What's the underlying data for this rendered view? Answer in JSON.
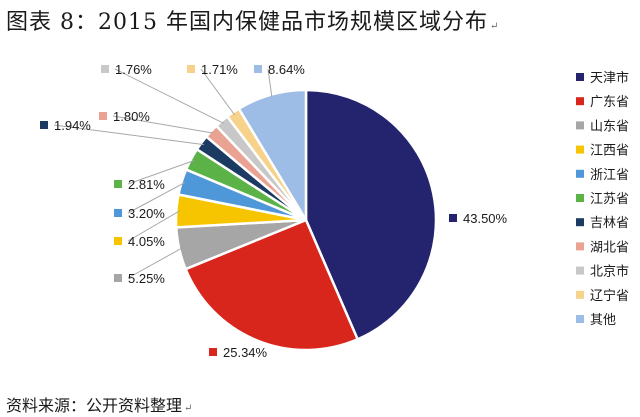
{
  "title": "图表 8：2015 年国内保健品市场规模区域分布",
  "source": "资料来源：公开资料整理",
  "chart_data": {
    "type": "pie",
    "categories": [
      "天津市",
      "广东省",
      "山东省",
      "江西省",
      "浙江省",
      "江苏省",
      "吉林省",
      "湖北省",
      "北京市",
      "辽宁省",
      "其他"
    ],
    "values": [
      43.5,
      25.34,
      5.25,
      4.05,
      3.2,
      2.81,
      1.94,
      1.8,
      1.76,
      1.71,
      8.64
    ],
    "labels": [
      "43.50%",
      "25.34%",
      "5.25%",
      "4.05%",
      "3.20%",
      "2.81%",
      "1.94%",
      "1.80%",
      "1.76%",
      "1.71%",
      "8.64%"
    ],
    "colors": [
      "#23236e",
      "#d9261c",
      "#a6a6a6",
      "#f7c500",
      "#4e97d8",
      "#5bb246",
      "#1c3b63",
      "#eaa393",
      "#c8c8c8",
      "#f7d28a",
      "#9dbde6"
    ],
    "legend_position": "right",
    "start_angle": "12 o'clock",
    "direction": "clockwise"
  }
}
